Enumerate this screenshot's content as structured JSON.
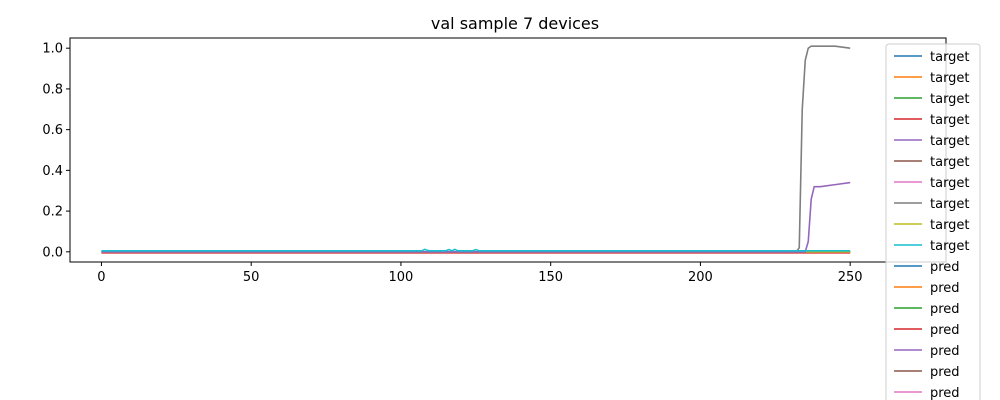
{
  "chart_data": {
    "type": "line",
    "title": "val sample 7 devices",
    "xlabel": "",
    "ylabel": "",
    "xlim": [
      -10.5,
      282
    ],
    "ylim": [
      -0.05,
      1.05
    ],
    "x_ticks": [
      0,
      50,
      100,
      150,
      200,
      250
    ],
    "y_ticks": [
      "0.0",
      "0.2",
      "0.4",
      "0.6",
      "0.8",
      "1.0"
    ],
    "legend_position": "top-right",
    "legend_entries": [
      {
        "label": "target",
        "color": "#1f77b4"
      },
      {
        "label": "target",
        "color": "#ff7f0e"
      },
      {
        "label": "target",
        "color": "#2ca02c"
      },
      {
        "label": "target",
        "color": "#d62728"
      },
      {
        "label": "target",
        "color": "#9467bd"
      },
      {
        "label": "target",
        "color": "#8c564b"
      },
      {
        "label": "target",
        "color": "#e377c2"
      },
      {
        "label": "target",
        "color": "#7f7f7f"
      },
      {
        "label": "target",
        "color": "#bcbd22"
      },
      {
        "label": "target",
        "color": "#17becf"
      },
      {
        "label": "pred",
        "color": "#1f77b4"
      },
      {
        "label": "pred",
        "color": "#ff7f0e"
      },
      {
        "label": "pred",
        "color": "#2ca02c"
      },
      {
        "label": "pred",
        "color": "#d62728"
      },
      {
        "label": "pred",
        "color": "#9467bd"
      },
      {
        "label": "pred",
        "color": "#8c564b"
      },
      {
        "label": "pred",
        "color": "#e377c2"
      }
    ],
    "series": [
      {
        "color": "#1f77b4",
        "x": [
          0,
          250
        ],
        "y": [
          0,
          0
        ]
      },
      {
        "color": "#ff7f0e",
        "x": [
          0,
          250
        ],
        "y": [
          0,
          0
        ]
      },
      {
        "color": "#2ca02c",
        "x": [
          0,
          250
        ],
        "y": [
          0,
          0
        ]
      },
      {
        "color": "#d62728",
        "x": [
          0,
          250
        ],
        "y": [
          -0.005,
          -0.005
        ]
      },
      {
        "color": "#8c564b",
        "x": [
          0,
          250
        ],
        "y": [
          0,
          0
        ]
      },
      {
        "color": "#e377c2",
        "x": [
          0,
          250
        ],
        "y": [
          0,
          0
        ]
      },
      {
        "color": "#bcbd22",
        "x": [
          0,
          250
        ],
        "y": [
          0,
          0
        ]
      },
      {
        "color": "#7f7f7f",
        "x": [
          0,
          232,
          233,
          234,
          235,
          236,
          237,
          240,
          245,
          250
        ],
        "y": [
          0,
          0,
          0.02,
          0.7,
          0.94,
          1.0,
          1.01,
          1.01,
          1.01,
          1.0
        ]
      },
      {
        "color": "#9467bd",
        "x": [
          0,
          235,
          236,
          237,
          238,
          239,
          240,
          245,
          250
        ],
        "y": [
          0,
          0,
          0.05,
          0.26,
          0.32,
          0.32,
          0.32,
          0.33,
          0.34
        ]
      },
      {
        "color": "#17becf",
        "x": [
          0,
          107,
          108,
          109,
          110,
          115,
          116,
          117,
          118,
          119,
          120,
          124,
          125,
          126,
          127,
          250
        ],
        "y": [
          0.005,
          0.005,
          0.012,
          0.006,
          0.005,
          0.005,
          0.011,
          0.005,
          0.012,
          0.005,
          0.005,
          0.005,
          0.011,
          0.005,
          0.005,
          0.005
        ]
      }
    ]
  }
}
